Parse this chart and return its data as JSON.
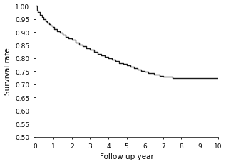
{
  "title": "",
  "xlabel": "Follow up year",
  "ylabel": "Survival rate",
  "xlim": [
    0,
    10
  ],
  "ylim": [
    0.5,
    1.005
  ],
  "xticks": [
    0,
    1,
    2,
    3,
    4,
    5,
    6,
    7,
    8,
    9,
    10
  ],
  "yticks": [
    0.5,
    0.55,
    0.6,
    0.65,
    0.7,
    0.75,
    0.8,
    0.85,
    0.9,
    0.95,
    1.0
  ],
  "line_color": "#1a1a1a",
  "line_width": 1.0,
  "background_color": "#ffffff",
  "step_x": [
    0.0,
    0.08,
    0.15,
    0.25,
    0.35,
    0.45,
    0.55,
    0.65,
    0.75,
    0.85,
    0.95,
    1.05,
    1.2,
    1.35,
    1.5,
    1.65,
    1.8,
    2.0,
    2.2,
    2.4,
    2.6,
    2.8,
    3.0,
    3.2,
    3.4,
    3.6,
    3.8,
    4.0,
    4.2,
    4.4,
    4.6,
    4.8,
    5.0,
    5.2,
    5.4,
    5.6,
    5.8,
    6.0,
    6.2,
    6.5,
    6.8,
    7.0,
    7.5,
    10.0
  ],
  "step_y": [
    1.0,
    0.985,
    0.975,
    0.965,
    0.956,
    0.948,
    0.942,
    0.936,
    0.93,
    0.924,
    0.918,
    0.912,
    0.904,
    0.896,
    0.888,
    0.882,
    0.876,
    0.869,
    0.86,
    0.852,
    0.845,
    0.838,
    0.831,
    0.824,
    0.817,
    0.811,
    0.805,
    0.8,
    0.794,
    0.788,
    0.782,
    0.777,
    0.772,
    0.766,
    0.761,
    0.756,
    0.752,
    0.748,
    0.744,
    0.738,
    0.733,
    0.728,
    0.724,
    0.724
  ]
}
